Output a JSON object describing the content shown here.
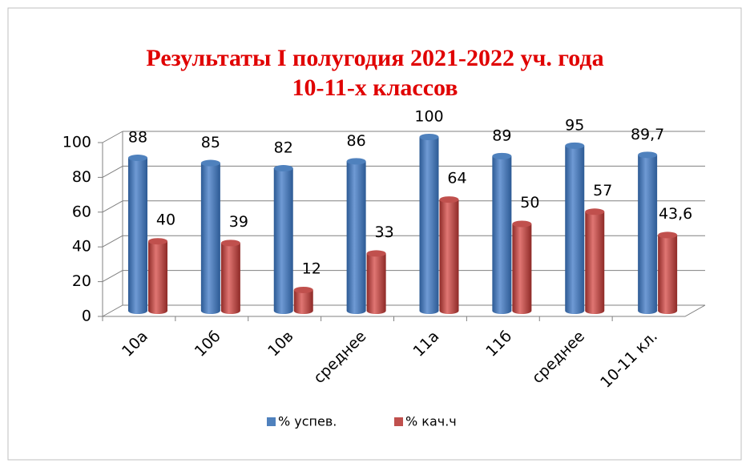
{
  "chart_data": {
    "type": "bar",
    "title": [
      "Результаты I полугодия 2021-2022 уч. года",
      "10-11-х классов"
    ],
    "categories": [
      "10а",
      "10б",
      "10в",
      "среднее",
      "11а",
      "11б",
      "среднее",
      "10-11 кл."
    ],
    "series": [
      {
        "name": "% успев.",
        "color": "#4f81bd",
        "values": [
          88,
          85,
          82,
          86,
          100,
          89,
          95,
          89.7
        ],
        "value_labels": [
          "88",
          "85",
          "82",
          "86",
          "100",
          "89",
          "95",
          "89,7"
        ]
      },
      {
        "name": "% кач.ч",
        "color": "#c0504d",
        "values": [
          40,
          39,
          12,
          33,
          64,
          50,
          57,
          43.6
        ],
        "value_labels": [
          "40",
          "39",
          "12",
          "33",
          "64",
          "50",
          "57",
          "43,6"
        ]
      }
    ],
    "ylim": [
      0,
      100
    ],
    "yticks": [
      0,
      20,
      40,
      60,
      80,
      100
    ],
    "grid": true,
    "legend": "bottom"
  }
}
